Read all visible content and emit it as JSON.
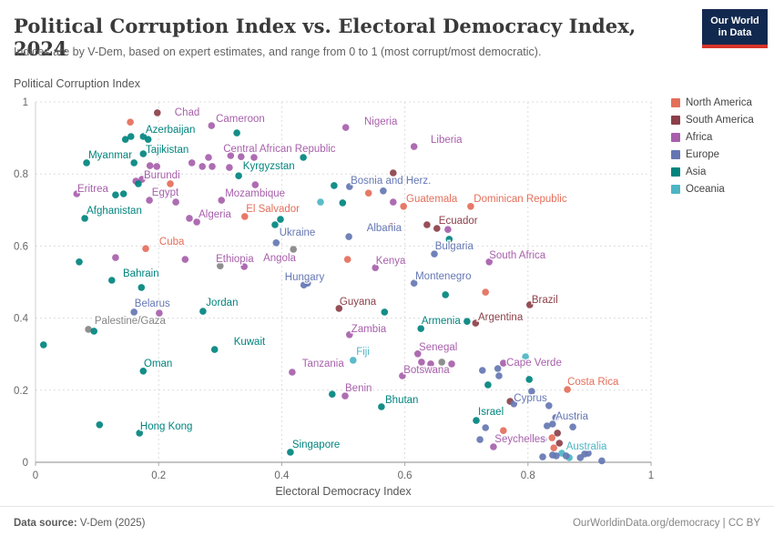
{
  "header": {
    "title": "Political Corruption Index vs. Electoral Democracy Index, 2024",
    "subtitle": "Indices are by V-Dem, based on expert estimates, and range from 0 to 1 (most corrupt/most democratic).",
    "logo_line1": "Our World",
    "logo_line2": "in Data"
  },
  "footer": {
    "source_label": "Data source:",
    "source_value": " V-Dem (2025)",
    "license": "OurWorldinData.org/democracy | CC BY"
  },
  "chart_data": {
    "type": "scatter",
    "xlabel": "Electoral Democracy Index",
    "ylabel": "Political Corruption Index",
    "xlim": [
      0,
      1
    ],
    "ylim": [
      0,
      1
    ],
    "grid": true,
    "ticks": [
      0,
      0.2,
      0.4,
      0.6,
      0.8,
      1
    ],
    "tick_labels": [
      "0",
      "0.2",
      "0.4",
      "0.6",
      "0.8",
      "1"
    ],
    "legend_position": "right",
    "legend": [
      {
        "label": "North America",
        "key": "na"
      },
      {
        "label": "South America",
        "key": "sa"
      },
      {
        "label": "Africa",
        "key": "af"
      },
      {
        "label": "Europe",
        "key": "eu"
      },
      {
        "label": "Asia",
        "key": "as"
      },
      {
        "label": "Oceania",
        "key": "oc"
      }
    ],
    "colors": {
      "na": "#e56e5a",
      "sa": "#8c4049",
      "af": "#a75fab",
      "eu": "#6577b3",
      "as": "#00847e",
      "oc": "#4db5c4",
      "gr": "#858585"
    },
    "points": [
      [
        0.198,
        0.97,
        "sa"
      ],
      [
        0.154,
        0.944,
        "na"
      ],
      [
        0.286,
        0.934,
        "af"
      ],
      [
        0.327,
        0.914,
        "as"
      ],
      [
        0.155,
        0.904,
        "as"
      ],
      [
        0.175,
        0.904,
        "as"
      ],
      [
        0.183,
        0.896,
        "as"
      ],
      [
        0.146,
        0.896,
        "as"
      ],
      [
        0.175,
        0.856,
        "as"
      ],
      [
        0.16,
        0.831,
        "as"
      ],
      [
        0.083,
        0.831,
        "as"
      ],
      [
        0.197,
        0.821,
        "af"
      ],
      [
        0.186,
        0.823,
        "af"
      ],
      [
        0.254,
        0.831,
        "af"
      ],
      [
        0.271,
        0.821,
        "af"
      ],
      [
        0.281,
        0.846,
        "af"
      ],
      [
        0.287,
        0.821,
        "af"
      ],
      [
        0.315,
        0.818,
        "af"
      ],
      [
        0.334,
        0.848,
        "af"
      ],
      [
        0.355,
        0.846,
        "af"
      ],
      [
        0.317,
        0.851,
        "af"
      ],
      [
        0.435,
        0.846,
        "as"
      ],
      [
        0.33,
        0.795,
        "as"
      ],
      [
        0.163,
        0.78,
        "af"
      ],
      [
        0.173,
        0.785,
        "af"
      ],
      [
        0.167,
        0.773,
        "as"
      ],
      [
        0.219,
        0.773,
        "na"
      ],
      [
        0.067,
        0.745,
        "af"
      ],
      [
        0.13,
        0.742,
        "as"
      ],
      [
        0.143,
        0.745,
        "as"
      ],
      [
        0.185,
        0.727,
        "af"
      ],
      [
        0.228,
        0.722,
        "af"
      ],
      [
        0.08,
        0.677,
        "as"
      ],
      [
        0.357,
        0.77,
        "af"
      ],
      [
        0.302,
        0.727,
        "af"
      ],
      [
        0.25,
        0.677,
        "af"
      ],
      [
        0.262,
        0.667,
        "af"
      ],
      [
        0.34,
        0.682,
        "na"
      ],
      [
        0.389,
        0.659,
        "as"
      ],
      [
        0.398,
        0.674,
        "as"
      ],
      [
        0.391,
        0.609,
        "eu"
      ],
      [
        0.419,
        0.591,
        "gr"
      ],
      [
        0.179,
        0.593,
        "na"
      ],
      [
        0.13,
        0.568,
        "af"
      ],
      [
        0.071,
        0.556,
        "as"
      ],
      [
        0.243,
        0.563,
        "af"
      ],
      [
        0.3,
        0.545,
        "gr"
      ],
      [
        0.339,
        0.543,
        "af"
      ],
      [
        0.124,
        0.505,
        "as"
      ],
      [
        0.172,
        0.485,
        "as"
      ],
      [
        0.16,
        0.417,
        "eu"
      ],
      [
        0.201,
        0.414,
        "af"
      ],
      [
        0.086,
        0.369,
        "gr"
      ],
      [
        0.095,
        0.364,
        "as"
      ],
      [
        0.013,
        0.326,
        "as"
      ],
      [
        0.272,
        0.419,
        "as"
      ],
      [
        0.291,
        0.313,
        "as"
      ],
      [
        0.175,
        0.253,
        "as"
      ],
      [
        0.104,
        0.104,
        "as"
      ],
      [
        0.169,
        0.081,
        "as"
      ],
      [
        0.414,
        0.028,
        "as"
      ],
      [
        0.417,
        0.25,
        "af"
      ],
      [
        0.504,
        0.929,
        "af"
      ],
      [
        0.615,
        0.876,
        "af"
      ],
      [
        0.581,
        0.803,
        "sa"
      ],
      [
        0.565,
        0.753,
        "eu"
      ],
      [
        0.485,
        0.768,
        "as"
      ],
      [
        0.51,
        0.765,
        "eu"
      ],
      [
        0.541,
        0.747,
        "na"
      ],
      [
        0.463,
        0.722,
        "oc"
      ],
      [
        0.499,
        0.72,
        "as"
      ],
      [
        0.581,
        0.722,
        "af"
      ],
      [
        0.598,
        0.71,
        "na"
      ],
      [
        0.707,
        0.71,
        "na"
      ],
      [
        0.578,
        0.654,
        "sa"
      ],
      [
        0.636,
        0.659,
        "sa"
      ],
      [
        0.652,
        0.649,
        "sa"
      ],
      [
        0.67,
        0.646,
        "af"
      ],
      [
        0.672,
        0.619,
        "as"
      ],
      [
        0.509,
        0.626,
        "eu"
      ],
      [
        0.648,
        0.578,
        "eu"
      ],
      [
        0.507,
        0.563,
        "na"
      ],
      [
        0.552,
        0.54,
        "af"
      ],
      [
        0.737,
        0.556,
        "af"
      ],
      [
        0.615,
        0.497,
        "eu"
      ],
      [
        0.436,
        0.492,
        "eu"
      ],
      [
        0.442,
        0.497,
        "eu"
      ],
      [
        0.666,
        0.465,
        "as"
      ],
      [
        0.731,
        0.472,
        "na"
      ],
      [
        0.493,
        0.427,
        "sa"
      ],
      [
        0.567,
        0.417,
        "as"
      ],
      [
        0.803,
        0.437,
        "sa"
      ],
      [
        0.701,
        0.391,
        "as"
      ],
      [
        0.715,
        0.386,
        "sa"
      ],
      [
        0.626,
        0.371,
        "as"
      ],
      [
        0.51,
        0.354,
        "af"
      ],
      [
        0.516,
        0.283,
        "oc"
      ],
      [
        0.621,
        0.301,
        "af"
      ],
      [
        0.627,
        0.278,
        "af"
      ],
      [
        0.642,
        0.273,
        "af"
      ],
      [
        0.66,
        0.278,
        "gr"
      ],
      [
        0.676,
        0.273,
        "af"
      ],
      [
        0.596,
        0.24,
        "af"
      ],
      [
        0.503,
        0.184,
        "af"
      ],
      [
        0.562,
        0.154,
        "as"
      ],
      [
        0.482,
        0.189,
        "as"
      ],
      [
        0.796,
        0.293,
        "oc"
      ],
      [
        0.76,
        0.275,
        "af"
      ],
      [
        0.726,
        0.255,
        "eu"
      ],
      [
        0.751,
        0.26,
        "eu"
      ],
      [
        0.753,
        0.24,
        "eu"
      ],
      [
        0.735,
        0.215,
        "as"
      ],
      [
        0.802,
        0.23,
        "as"
      ],
      [
        0.864,
        0.202,
        "na"
      ],
      [
        0.771,
        0.169,
        "sa"
      ],
      [
        0.777,
        0.162,
        "eu"
      ],
      [
        0.806,
        0.197,
        "eu"
      ],
      [
        0.834,
        0.157,
        "eu"
      ],
      [
        0.716,
        0.116,
        "as"
      ],
      [
        0.731,
        0.096,
        "eu"
      ],
      [
        0.76,
        0.088,
        "na"
      ],
      [
        0.722,
        0.063,
        "eu"
      ],
      [
        0.744,
        0.043,
        "af"
      ],
      [
        0.831,
        0.101,
        "eu"
      ],
      [
        0.84,
        0.106,
        "eu"
      ],
      [
        0.873,
        0.098,
        "eu"
      ],
      [
        0.848,
        0.081,
        "sa"
      ],
      [
        0.851,
        0.053,
        "sa"
      ],
      [
        0.839,
        0.068,
        "na"
      ],
      [
        0.842,
        0.04,
        "na"
      ],
      [
        0.855,
        0.025,
        "oc"
      ],
      [
        0.867,
        0.013,
        "oc"
      ],
      [
        0.824,
        0.015,
        "eu"
      ],
      [
        0.84,
        0.02,
        "eu"
      ],
      [
        0.846,
        0.018,
        "eu"
      ],
      [
        0.862,
        0.018,
        "eu"
      ],
      [
        0.885,
        0.013,
        "eu"
      ],
      [
        0.892,
        0.023,
        "eu"
      ],
      [
        0.898,
        0.025,
        "eu"
      ],
      [
        0.92,
        0.004,
        "eu"
      ],
      [
        0.845,
        0.124,
        "eu"
      ],
      [
        0.825,
        0.063,
        "eu"
      ]
    ],
    "point_labels": [
      [
        "Chad",
        0.226,
        0.972,
        "af"
      ],
      [
        "Cameroon",
        0.293,
        0.955,
        "af"
      ],
      [
        "Azerbaijan",
        0.179,
        0.924,
        "as"
      ],
      [
        "Tajikistan",
        0.179,
        0.869,
        "as"
      ],
      [
        "Myanmar",
        0.086,
        0.854,
        "as"
      ],
      [
        "Central African Republic",
        0.305,
        0.871,
        "af"
      ],
      [
        "Kyrgyzstan",
        0.337,
        0.823,
        "as"
      ],
      [
        "Burundi",
        0.176,
        0.798,
        "af"
      ],
      [
        "Eritrea",
        0.068,
        0.76,
        "af"
      ],
      [
        "Egypt",
        0.189,
        0.75,
        "af"
      ],
      [
        "Mozambique",
        0.308,
        0.747,
        "af"
      ],
      [
        "Afghanistan",
        0.083,
        0.699,
        "as"
      ],
      [
        "Algeria",
        0.265,
        0.689,
        "af"
      ],
      [
        "El Salvador",
        0.342,
        0.705,
        "na"
      ],
      [
        "Cuba",
        0.201,
        0.614,
        "na"
      ],
      [
        "Ukraine",
        0.396,
        0.639,
        "eu"
      ],
      [
        "Ethiopia",
        0.293,
        0.566,
        "af"
      ],
      [
        "Angola",
        0.37,
        0.568,
        "af"
      ],
      [
        "Bahrain",
        0.142,
        0.525,
        "as"
      ],
      [
        "Hungary",
        0.405,
        0.515,
        "eu"
      ],
      [
        "Belarus",
        0.161,
        0.442,
        "eu"
      ],
      [
        "Jordan",
        0.277,
        0.444,
        "as"
      ],
      [
        "Palestine/Gaza",
        0.096,
        0.394,
        "gr"
      ],
      [
        "Kuwait",
        0.322,
        0.336,
        "as"
      ],
      [
        "Oman",
        0.176,
        0.275,
        "as"
      ],
      [
        "Hong Kong",
        0.17,
        0.101,
        "as"
      ],
      [
        "Singapore",
        0.417,
        0.051,
        "as"
      ],
      [
        "Tanzania",
        0.433,
        0.275,
        "af"
      ],
      [
        "Nigeria",
        0.534,
        0.947,
        "af"
      ],
      [
        "Liberia",
        0.642,
        0.896,
        "af"
      ],
      [
        "Bosnia and Herz.",
        0.512,
        0.783,
        "eu"
      ],
      [
        "Guatemala",
        0.602,
        0.732,
        "na"
      ],
      [
        "Dominican Republic",
        0.712,
        0.732,
        "na"
      ],
      [
        "Ecuador",
        0.655,
        0.672,
        "sa"
      ],
      [
        "Albania",
        0.538,
        0.651,
        "eu"
      ],
      [
        "Bulgaria",
        0.649,
        0.601,
        "eu"
      ],
      [
        "Kenya",
        0.553,
        0.561,
        "af"
      ],
      [
        "South Africa",
        0.737,
        0.576,
        "af"
      ],
      [
        "Montenegro",
        0.617,
        0.518,
        "eu"
      ],
      [
        "Guyana",
        0.494,
        0.447,
        "sa"
      ],
      [
        "Brazil",
        0.806,
        0.452,
        "sa"
      ],
      [
        "Armenia",
        0.627,
        0.394,
        "as"
      ],
      [
        "Argentina",
        0.719,
        0.404,
        "sa"
      ],
      [
        "Zambia",
        0.513,
        0.371,
        "af"
      ],
      [
        "Fiji",
        0.521,
        0.308,
        "oc"
      ],
      [
        "Senegal",
        0.623,
        0.321,
        "af"
      ],
      [
        "Botswana",
        0.598,
        0.258,
        "af"
      ],
      [
        "Benin",
        0.503,
        0.207,
        "af"
      ],
      [
        "Bhutan",
        0.568,
        0.174,
        "as"
      ],
      [
        "Cape Verde",
        0.765,
        0.278,
        "af"
      ],
      [
        "Costa Rica",
        0.864,
        0.225,
        "na"
      ],
      [
        "Cyprus",
        0.777,
        0.179,
        "eu"
      ],
      [
        "Israel",
        0.719,
        0.141,
        "as"
      ],
      [
        "Austria",
        0.845,
        0.129,
        "eu"
      ],
      [
        "Seychelles",
        0.746,
        0.066,
        "af"
      ],
      [
        "Australia",
        0.862,
        0.045,
        "oc"
      ]
    ]
  }
}
